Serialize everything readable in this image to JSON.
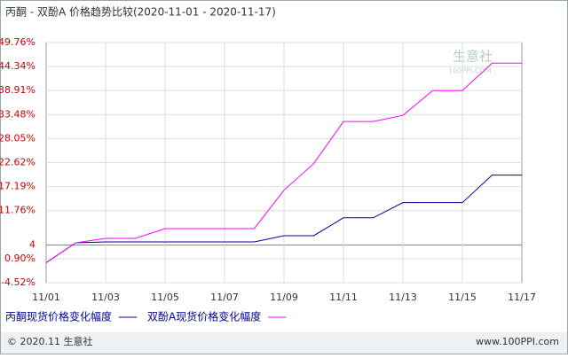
{
  "chart_data": {
    "type": "line",
    "title": "丙酮 - 双酚A 价格趋势比较(2020-11-01 - 2020-11-17)",
    "categories": [
      "11/01",
      null,
      "11/03",
      null,
      "11/05",
      null,
      "11/07",
      null,
      "11/09",
      null,
      "11/11",
      null,
      "11/13",
      null,
      "11/15",
      null,
      "11/17"
    ],
    "series": [
      {
        "name": "丙酮现货价格变化幅度",
        "color": "#000099",
        "values": [
          0,
          4.5,
          4.7,
          4.7,
          4.7,
          4.7,
          4.7,
          4.7,
          6.1,
          6.1,
          10.15,
          10.15,
          13.57,
          13.57,
          13.57,
          19.8,
          19.8
        ]
      },
      {
        "name": "双酚A现货价格变化幅度",
        "color": "#ff00ff",
        "values": [
          0,
          4.5,
          5.5,
          5.5,
          7.7,
          7.7,
          7.7,
          7.7,
          16.4,
          22.4,
          31.9,
          31.9,
          33.3,
          38.9,
          38.9,
          45.1,
          45.1
        ]
      }
    ],
    "ylim": [
      -4.52,
      49.76
    ],
    "yticks": [
      {
        "value": -4.52,
        "label": "-4.52%"
      },
      {
        "value": 0.9,
        "label": "0.90%"
      },
      4,
      {
        "value": 11.76,
        "label": "11.76%"
      },
      {
        "value": 17.19,
        "label": "17.19%"
      },
      {
        "value": 22.62,
        "label": "22.62%"
      },
      {
        "value": 28.05,
        "label": "28.05%"
      },
      {
        "value": 33.48,
        "label": "33.48%"
      },
      {
        "value": 38.91,
        "label": "38.91%"
      },
      {
        "value": 44.34,
        "label": "44.34%"
      },
      {
        "value": 49.76,
        "label": "49.76%"
      }
    ],
    "grid": true,
    "watermark": "生意社",
    "watermark_sub": "100PPI.COM",
    "footer_left": "© 2020.11 生意社",
    "footer_right": "www.100PPI.com"
  }
}
